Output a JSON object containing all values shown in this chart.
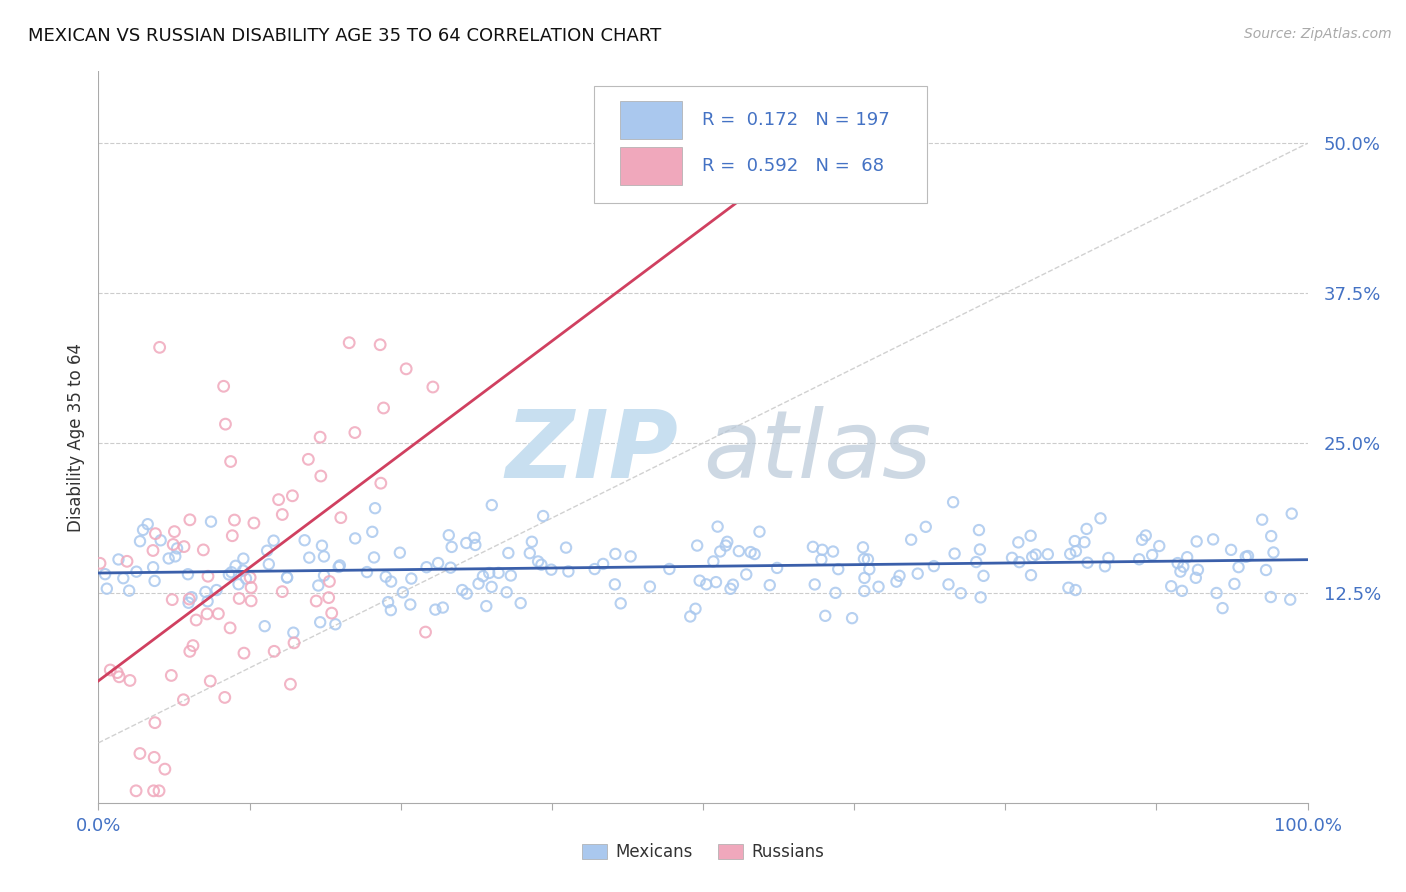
{
  "title": "MEXICAN VS RUSSIAN DISABILITY AGE 35 TO 64 CORRELATION CHART",
  "source": "Source: ZipAtlas.com",
  "ylabel": "Disability Age 35 to 64",
  "xlim": [
    0.0,
    1.0
  ],
  "ylim": [
    -0.05,
    0.56
  ],
  "ytick_positions": [
    0.125,
    0.25,
    0.375,
    0.5
  ],
  "ytick_labels": [
    "12.5%",
    "25.0%",
    "37.5%",
    "50.0%"
  ],
  "mexican_color": "#aac8ee",
  "russian_color": "#f0a8bc",
  "trend_mexican_color": "#3a5faa",
  "trend_russian_color": "#d04060",
  "mexican_R": 0.172,
  "mexican_N": 197,
  "russian_R": 0.592,
  "russian_N": 68,
  "legend_text_color": "#4472c4",
  "background_color": "#ffffff",
  "grid_color": "#cccccc",
  "title_color": "#111111",
  "axis_label_color": "#333333",
  "tick_label_color": "#4472c4",
  "watermark_color1": "#c8dff0",
  "watermark_color2": "#b8c8d8",
  "ref_line_color": "#cccccc",
  "source_color": "#aaaaaa"
}
